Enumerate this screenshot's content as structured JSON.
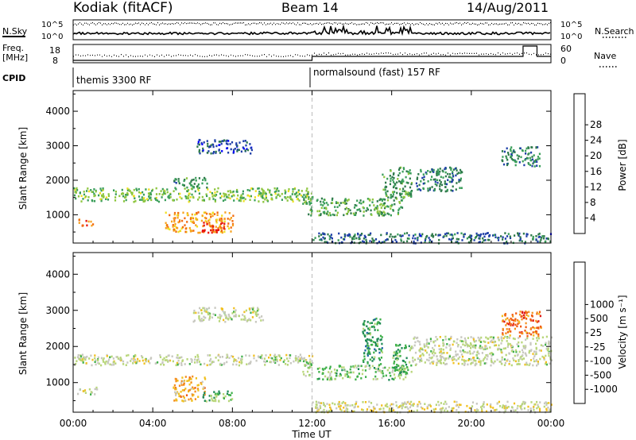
{
  "header": {
    "station": "Kodiak (fitACF)",
    "beam": "Beam 14",
    "date": "14/Aug/2011"
  },
  "noise_panel": {
    "left_label": "N.Sky",
    "right_label": "N.Search",
    "left_ticks": [
      "10^5",
      "10^0"
    ],
    "right_ticks": [
      "10^5",
      "10^0"
    ]
  },
  "freq_panel": {
    "left_label_1": "Freq.",
    "left_label_2": "[MHz]",
    "right_label": "Nave",
    "left_ticks": [
      "18",
      "8"
    ],
    "right_ticks": [
      "60",
      "0"
    ]
  },
  "cpid_panel": {
    "label": "CPID",
    "segments": [
      {
        "start_hour": 0,
        "text": "themis 3300 RF"
      },
      {
        "start_hour": 12,
        "text": "normalsound (fast) 157 RF"
      }
    ]
  },
  "x_axis": {
    "title": "Time UT",
    "ticks": [
      "00:00",
      "04:00",
      "08:00",
      "12:00",
      "16:00",
      "20:00",
      "00:00"
    ]
  },
  "power_panel": {
    "ylabel": "Slant Range [km]",
    "yticks": [
      "1000",
      "2000",
      "3000",
      "4000"
    ],
    "colorbar_label": "Power [dB]",
    "colorbar_ticks": [
      "4",
      "8",
      "12",
      "16",
      "20",
      "24",
      "28"
    ],
    "colors": [
      "#0000ff",
      "#1f3fa8",
      "#2e7a4a",
      "#3a9e5a",
      "#8ec63f",
      "#f0e020",
      "#f7a21e",
      "#f26a10",
      "#e8140c"
    ]
  },
  "velocity_panel": {
    "ylabel": "Slant Range [km]",
    "yticks": [
      "1000",
      "2000",
      "3000",
      "4000"
    ],
    "colorbar_label": "Velocity [m s⁻¹]",
    "colorbar_ticks": [
      "1000",
      "500",
      "25",
      "-25",
      "-100",
      "-500",
      "-1000"
    ],
    "colors": [
      "#1a1ad0",
      "#1f63a8",
      "#1f8a55",
      "#3fb04a",
      "#b8d67a",
      "#c8c8c0",
      "#f0c020",
      "#f5901e",
      "#f05a10",
      "#e01818"
    ]
  },
  "chart_data": [
    {
      "type": "heatmap",
      "title": "Power [dB]",
      "xlabel": "Time UT",
      "ylabel": "Slant Range [km]",
      "xlim": [
        0,
        24
      ],
      "ylim": [
        180,
        4600
      ],
      "color_range": [
        0,
        30
      ],
      "patches": [
        {
          "t0": 0.0,
          "t1": 12.0,
          "r0": 1400,
          "r1": 1800,
          "value": 14
        },
        {
          "t0": 0.2,
          "t1": 1.0,
          "r0": 700,
          "r1": 900,
          "value": 26
        },
        {
          "t0": 4.6,
          "t1": 8.0,
          "r0": 500,
          "r1": 1100,
          "value": 22
        },
        {
          "t0": 6.4,
          "t1": 7.6,
          "r0": 500,
          "r1": 800,
          "value": 29
        },
        {
          "t0": 5.0,
          "t1": 6.8,
          "r0": 1800,
          "r1": 2100,
          "value": 10
        },
        {
          "t0": 11.5,
          "t1": 12.0,
          "r0": 1000,
          "r1": 1700,
          "value": 12
        },
        {
          "t0": 12.2,
          "t1": 16.5,
          "r0": 1000,
          "r1": 1500,
          "value": 12
        },
        {
          "t0": 15.5,
          "t1": 17.0,
          "r0": 1500,
          "r1": 2400,
          "value": 11
        },
        {
          "t0": 17.2,
          "t1": 19.5,
          "r0": 1700,
          "r1": 2400,
          "value": 9
        },
        {
          "t0": 12.0,
          "t1": 24.0,
          "r0": 200,
          "r1": 500,
          "value": 7
        },
        {
          "t0": 21.5,
          "t1": 23.4,
          "r0": 2400,
          "r1": 3000,
          "value": 9
        },
        {
          "t0": 6.2,
          "t1": 9.0,
          "r0": 2800,
          "r1": 3200,
          "value": 6
        }
      ]
    },
    {
      "type": "heatmap",
      "title": "Velocity [m s⁻¹]",
      "xlabel": "Time UT",
      "ylabel": "Slant Range [km]",
      "xlim": [
        0,
        24
      ],
      "ylim": [
        180,
        4600
      ],
      "color_range": [
        -1000,
        1000
      ],
      "patches": [
        {
          "t0": 0.0,
          "t1": 12.0,
          "r0": 1500,
          "r1": 1800,
          "value": 0
        },
        {
          "t0": 0.2,
          "t1": 1.2,
          "r0": 700,
          "r1": 900,
          "value": 0
        },
        {
          "t0": 5.0,
          "t1": 6.6,
          "r0": 500,
          "r1": 1200,
          "value": 400
        },
        {
          "t0": 6.4,
          "t1": 8.0,
          "r0": 500,
          "r1": 800,
          "value": -300
        },
        {
          "t0": 11.5,
          "t1": 12.0,
          "r0": 1200,
          "r1": 1700,
          "value": -200
        },
        {
          "t0": 12.2,
          "t1": 16.8,
          "r0": 1100,
          "r1": 1500,
          "value": -200
        },
        {
          "t0": 14.5,
          "t1": 15.5,
          "r0": 1500,
          "r1": 2800,
          "value": -400
        },
        {
          "t0": 16.0,
          "t1": 17.0,
          "r0": 1300,
          "r1": 2100,
          "value": -300
        },
        {
          "t0": 17.0,
          "t1": 24.0,
          "r0": 1500,
          "r1": 2300,
          "value": 0
        },
        {
          "t0": 12.0,
          "t1": 24.0,
          "r0": 200,
          "r1": 500,
          "value": 80
        },
        {
          "t0": 21.5,
          "t1": 23.5,
          "r0": 2300,
          "r1": 3000,
          "value": 600
        },
        {
          "t0": 6.0,
          "t1": 9.5,
          "r0": 2700,
          "r1": 3100,
          "value": 0
        }
      ]
    }
  ]
}
